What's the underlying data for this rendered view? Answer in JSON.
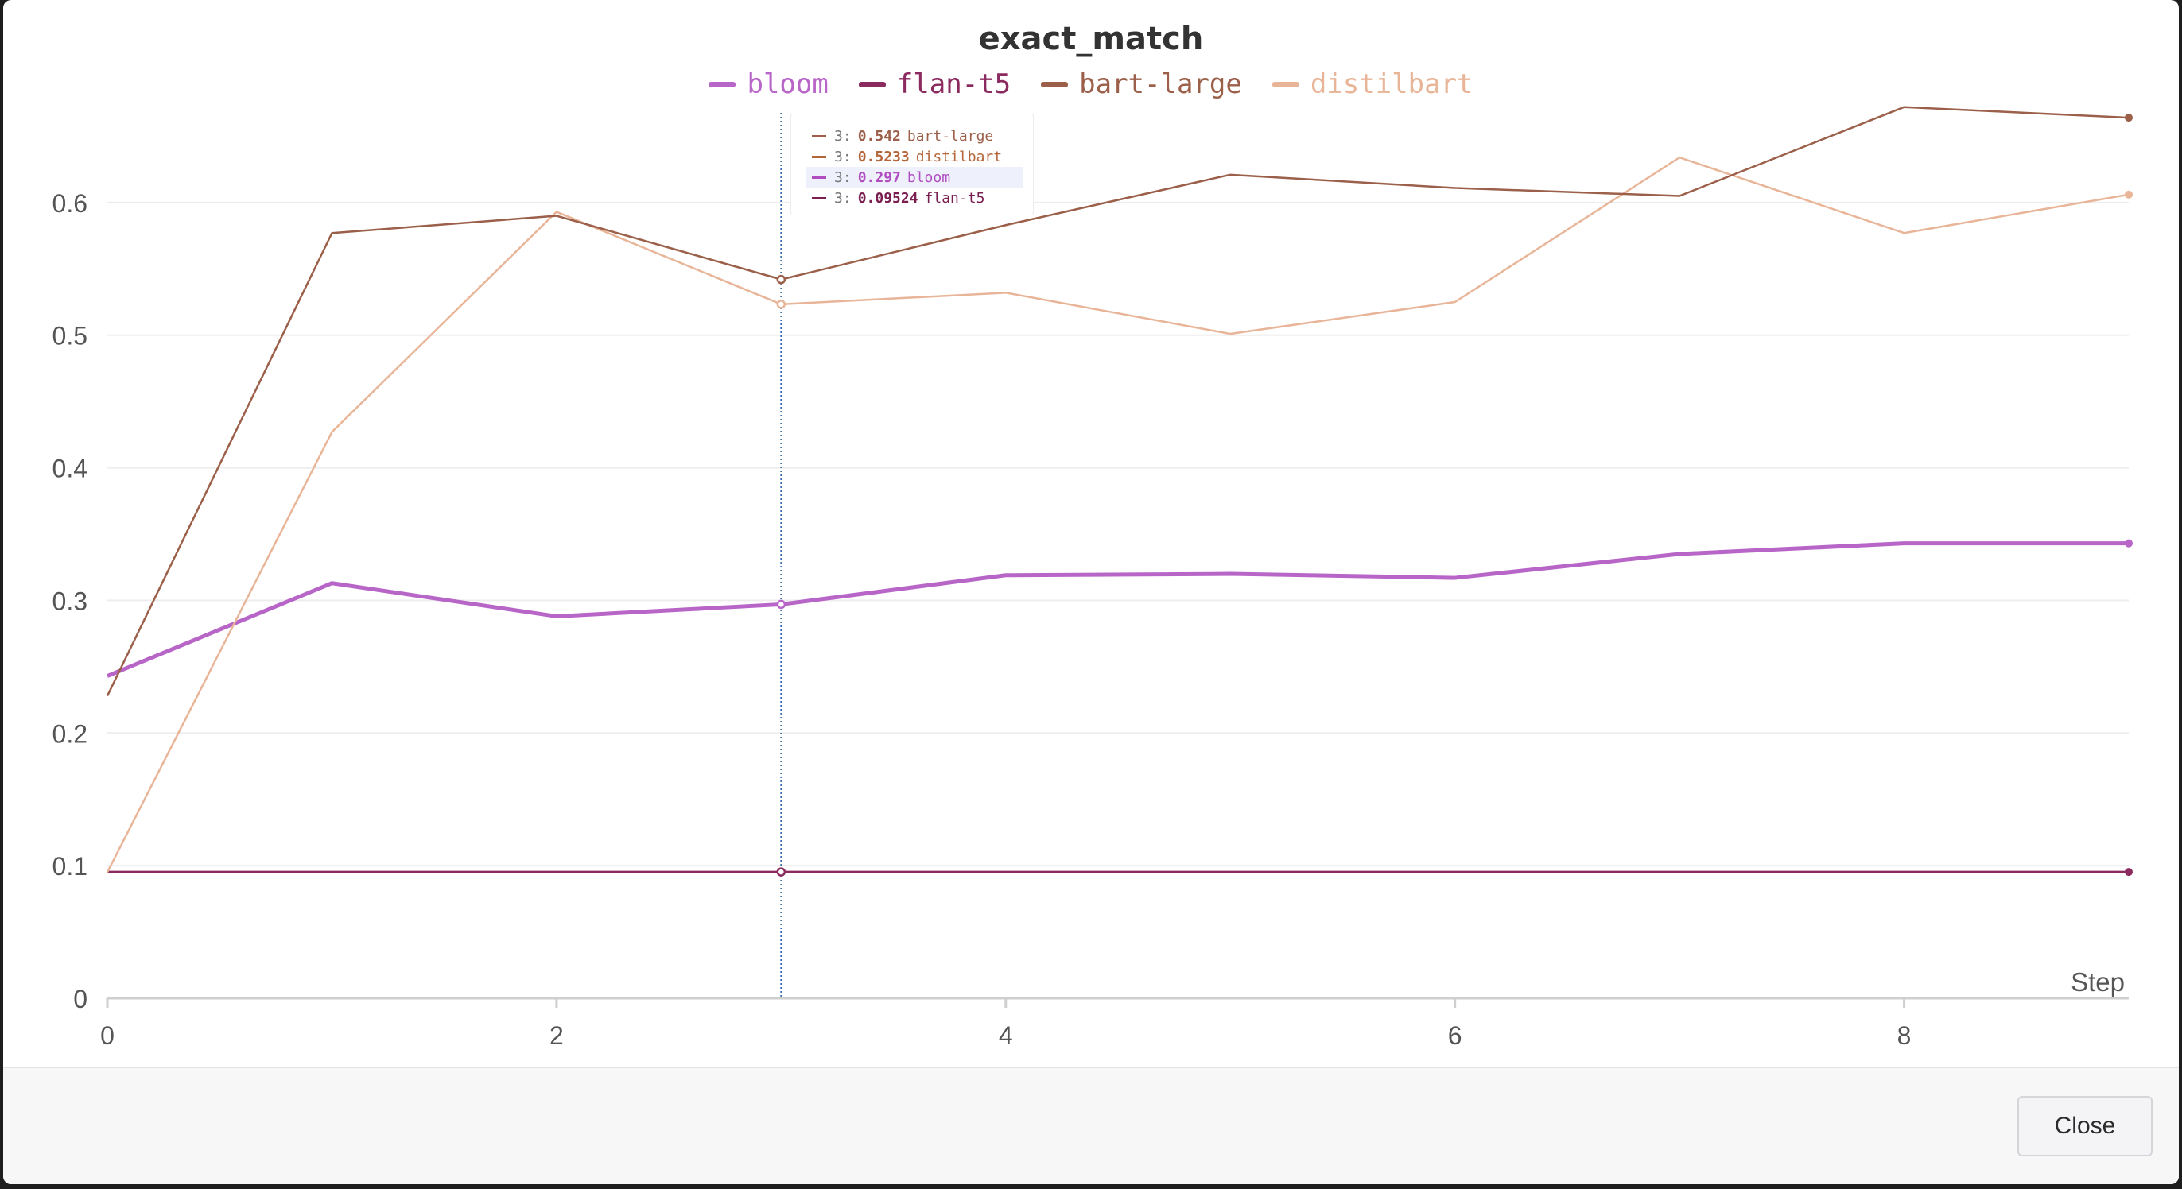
{
  "chart_data": {
    "type": "line",
    "title": "exact_match",
    "xlabel": "Step",
    "ylabel": "",
    "xlim": [
      0,
      9
    ],
    "ylim": [
      0,
      0.7
    ],
    "x_ticks": [
      0,
      2,
      4,
      6,
      8
    ],
    "y_ticks": [
      0,
      0.1,
      0.2,
      0.3,
      0.4,
      0.5,
      0.6
    ],
    "grid": true,
    "legend_position": "top-center",
    "x": [
      0,
      1,
      2,
      3,
      4,
      5,
      6,
      7,
      8,
      9
    ],
    "series": [
      {
        "name": "bloom",
        "color": "#b865c8",
        "width": 5,
        "values": [
          0.243,
          0.313,
          0.288,
          0.297,
          0.319,
          0.32,
          0.317,
          0.335,
          0.343,
          0.343
        ]
      },
      {
        "name": "flan-t5",
        "color": "#8a2a5e",
        "width": 3,
        "values": [
          0.09524,
          0.09524,
          0.09524,
          0.09524,
          0.09524,
          0.09524,
          0.09524,
          0.09524,
          0.09524,
          0.09524
        ]
      },
      {
        "name": "bart-large",
        "color": "#9b5f4a",
        "width": 2.5,
        "values": [
          0.228,
          0.577,
          0.59,
          0.542,
          0.583,
          0.621,
          0.611,
          0.605,
          0.672,
          0.664
        ]
      },
      {
        "name": "distilbart",
        "color": "#e8b598",
        "width": 2.5,
        "values": [
          0.095,
          0.427,
          0.593,
          0.5233,
          0.532,
          0.501,
          0.525,
          0.634,
          0.577,
          0.606
        ]
      }
    ],
    "hover": {
      "step": 3,
      "rows": [
        {
          "label": "3:",
          "value": "0.542",
          "name": "bart-large",
          "color": "#9b5f4a",
          "highlight": false
        },
        {
          "label": "3:",
          "value": "0.5233",
          "name": "distilbart",
          "color": "#b5653a",
          "highlight": false
        },
        {
          "label": "3:",
          "value": "0.297",
          "name": "bloom",
          "color": "#b04dc0",
          "highlight": true
        },
        {
          "label": "3:",
          "value": "0.09524",
          "name": "flan-t5",
          "color": "#7a1f50",
          "highlight": false
        }
      ]
    }
  },
  "footer": {
    "close_label": "Close"
  }
}
